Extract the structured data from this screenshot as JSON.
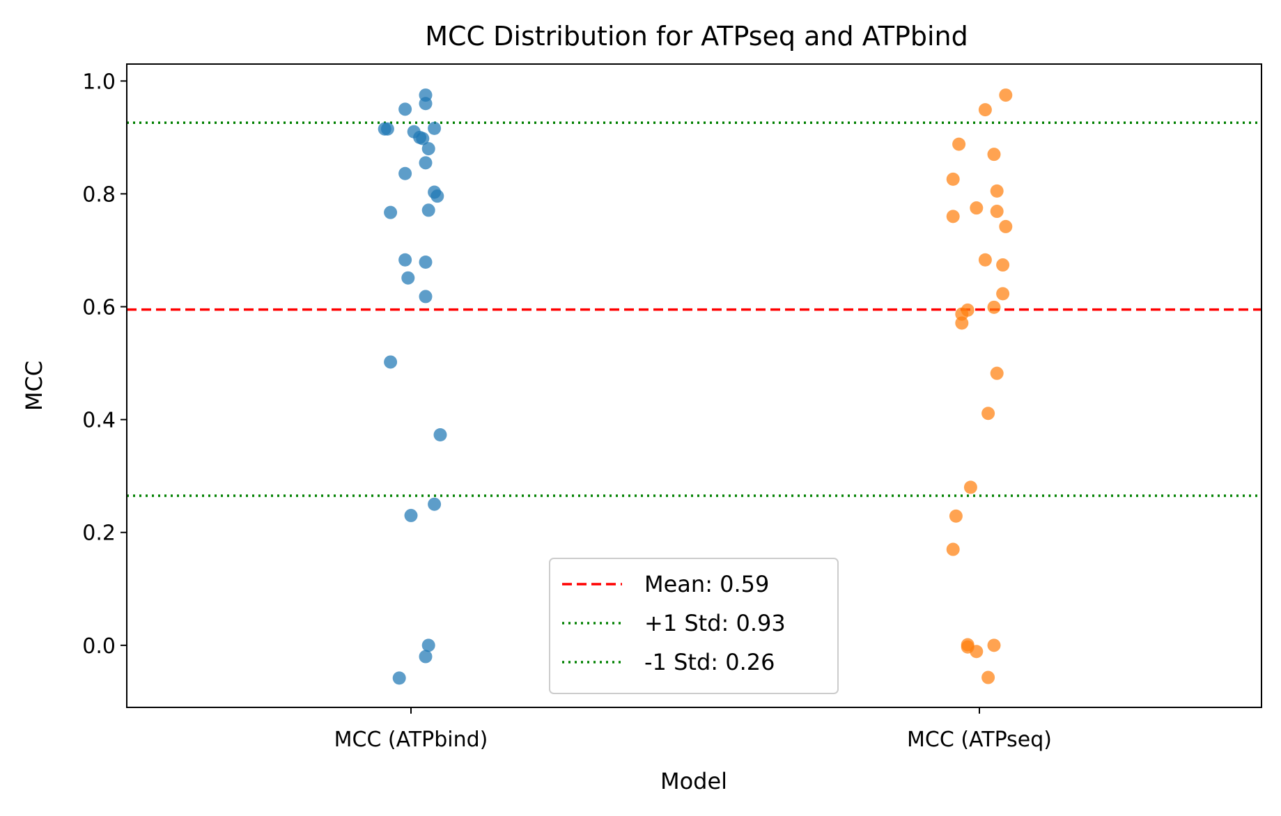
{
  "chart_data": {
    "type": "scatter",
    "title": "MCC Distribution for ATPseq and ATPbind",
    "xlabel": "Model",
    "ylabel": "MCC",
    "categories": [
      "MCC (ATPbind)",
      "MCC (ATPseq)"
    ],
    "ylim": [
      -0.11,
      1.03
    ],
    "yticks": [
      0.0,
      0.2,
      0.4,
      0.6,
      0.8,
      1.0
    ],
    "ytick_labels": [
      "0.0",
      "0.2",
      "0.4",
      "0.6",
      "0.8",
      "1.0"
    ],
    "grid": false,
    "legend_position": "lower center",
    "series": [
      {
        "category": "MCC (ATPbind)",
        "color": "#1f77b4",
        "points": [
          {
            "jitter": 0.05,
            "y": 0.975
          },
          {
            "jitter": 0.05,
            "y": 0.96
          },
          {
            "jitter": -0.02,
            "y": 0.95
          },
          {
            "jitter": -0.09,
            "y": 0.915
          },
          {
            "jitter": -0.08,
            "y": 0.915
          },
          {
            "jitter": 0.08,
            "y": 0.916
          },
          {
            "jitter": 0.01,
            "y": 0.91
          },
          {
            "jitter": 0.03,
            "y": 0.9
          },
          {
            "jitter": 0.04,
            "y": 0.898
          },
          {
            "jitter": 0.06,
            "y": 0.88
          },
          {
            "jitter": 0.05,
            "y": 0.855
          },
          {
            "jitter": -0.02,
            "y": 0.836
          },
          {
            "jitter": 0.08,
            "y": 0.803
          },
          {
            "jitter": 0.09,
            "y": 0.796
          },
          {
            "jitter": 0.06,
            "y": 0.771
          },
          {
            "jitter": -0.07,
            "y": 0.767
          },
          {
            "jitter": -0.02,
            "y": 0.683
          },
          {
            "jitter": 0.05,
            "y": 0.679
          },
          {
            "jitter": -0.01,
            "y": 0.651
          },
          {
            "jitter": 0.05,
            "y": 0.618
          },
          {
            "jitter": -0.07,
            "y": 0.502
          },
          {
            "jitter": 0.1,
            "y": 0.373
          },
          {
            "jitter": 0.08,
            "y": 0.25
          },
          {
            "jitter": 0.0,
            "y": 0.23
          },
          {
            "jitter": 0.06,
            "y": 0.0
          },
          {
            "jitter": 0.05,
            "y": -0.02
          },
          {
            "jitter": -0.04,
            "y": -0.058
          }
        ]
      },
      {
        "category": "MCC (ATPseq)",
        "color": "#ff7f0e",
        "points": [
          {
            "jitter": 0.09,
            "y": 0.975
          },
          {
            "jitter": 0.02,
            "y": 0.949
          },
          {
            "jitter": -0.07,
            "y": 0.888
          },
          {
            "jitter": 0.05,
            "y": 0.87
          },
          {
            "jitter": -0.09,
            "y": 0.826
          },
          {
            "jitter": 0.06,
            "y": 0.805
          },
          {
            "jitter": -0.01,
            "y": 0.775
          },
          {
            "jitter": 0.06,
            "y": 0.769
          },
          {
            "jitter": -0.09,
            "y": 0.76
          },
          {
            "jitter": 0.09,
            "y": 0.742
          },
          {
            "jitter": 0.02,
            "y": 0.683
          },
          {
            "jitter": 0.08,
            "y": 0.674
          },
          {
            "jitter": 0.08,
            "y": 0.623
          },
          {
            "jitter": 0.05,
            "y": 0.599
          },
          {
            "jitter": -0.04,
            "y": 0.594
          },
          {
            "jitter": -0.06,
            "y": 0.587
          },
          {
            "jitter": -0.06,
            "y": 0.571
          },
          {
            "jitter": 0.06,
            "y": 0.482
          },
          {
            "jitter": 0.03,
            "y": 0.411
          },
          {
            "jitter": -0.03,
            "y": 0.28
          },
          {
            "jitter": -0.08,
            "y": 0.229
          },
          {
            "jitter": -0.09,
            "y": 0.17
          },
          {
            "jitter": -0.04,
            "y": 0.001
          },
          {
            "jitter": 0.05,
            "y": 0.0
          },
          {
            "jitter": -0.04,
            "y": -0.003
          },
          {
            "jitter": -0.01,
            "y": -0.011
          },
          {
            "jitter": 0.03,
            "y": -0.057
          }
        ]
      }
    ],
    "reference_lines": [
      {
        "label": "Mean: 0.59",
        "y": 0.595,
        "color": "#ff0000",
        "style": "dashed"
      },
      {
        "label": "+1 Std: 0.93",
        "y": 0.926,
        "color": "#008000",
        "style": "dotted"
      },
      {
        "label": "-1 Std: 0.26",
        "y": 0.265,
        "color": "#008000",
        "style": "dotted"
      }
    ]
  }
}
